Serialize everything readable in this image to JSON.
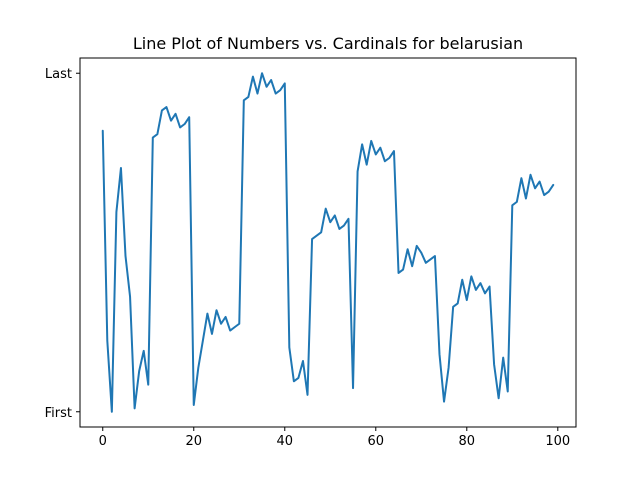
{
  "chart_data": {
    "type": "line",
    "title": "Line Plot of Numbers vs. Cardinals for belarusian",
    "xlabel": "",
    "ylabel": "",
    "xlim": [
      -5,
      104
    ],
    "ylim": [
      -0.045,
      1.045
    ],
    "x_ticks": [
      0,
      20,
      40,
      60,
      80,
      100
    ],
    "y_ticks": [
      {
        "value": 0,
        "label": "First"
      },
      {
        "value": 1,
        "label": "Last"
      }
    ],
    "grid": false,
    "colors": {
      "line": "#1f77b4"
    },
    "series": [
      {
        "x": [
          0,
          1,
          2,
          3,
          4,
          5,
          6,
          7,
          8,
          9,
          10,
          11,
          12,
          13,
          14,
          15,
          16,
          17,
          18,
          19,
          20,
          21,
          22,
          23,
          24,
          25,
          26,
          27,
          28,
          29,
          30,
          31,
          32,
          33,
          34,
          35,
          36,
          37,
          38,
          39,
          40,
          41,
          42,
          43,
          44,
          45,
          46,
          47,
          48,
          49,
          50,
          51,
          52,
          53,
          54,
          55,
          56,
          57,
          58,
          59,
          60,
          61,
          62,
          63,
          64,
          65,
          66,
          67,
          68,
          69,
          70,
          71,
          72,
          73,
          74,
          75,
          76,
          77,
          78,
          79,
          80,
          81,
          82,
          83,
          84,
          85,
          86,
          87,
          88,
          89,
          90,
          91,
          92,
          93,
          94,
          95,
          96,
          97,
          98,
          99
        ],
        "values": [
          0.83,
          0.21,
          0.0,
          0.59,
          0.72,
          0.46,
          0.34,
          0.01,
          0.12,
          0.18,
          0.08,
          0.81,
          0.82,
          0.89,
          0.9,
          0.86,
          0.88,
          0.84,
          0.85,
          0.87,
          0.02,
          0.13,
          0.21,
          0.29,
          0.23,
          0.3,
          0.26,
          0.28,
          0.24,
          0.25,
          0.26,
          0.92,
          0.93,
          0.99,
          0.94,
          1.0,
          0.96,
          0.98,
          0.94,
          0.95,
          0.97,
          0.19,
          0.09,
          0.1,
          0.15,
          0.05,
          0.51,
          0.52,
          0.53,
          0.6,
          0.56,
          0.58,
          0.54,
          0.55,
          0.57,
          0.07,
          0.71,
          0.79,
          0.73,
          0.8,
          0.76,
          0.78,
          0.74,
          0.75,
          0.77,
          0.41,
          0.42,
          0.48,
          0.43,
          0.49,
          0.47,
          0.44,
          0.45,
          0.46,
          0.17,
          0.03,
          0.13,
          0.31,
          0.32,
          0.39,
          0.33,
          0.4,
          0.36,
          0.38,
          0.35,
          0.37,
          0.14,
          0.04,
          0.16,
          0.06,
          0.61,
          0.62,
          0.69,
          0.63,
          0.7,
          0.66,
          0.68,
          0.64,
          0.65,
          0.67
        ]
      }
    ]
  }
}
